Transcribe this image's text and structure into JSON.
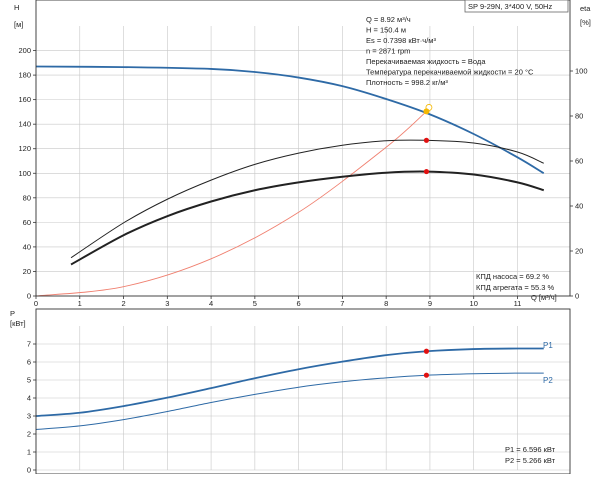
{
  "header": {
    "pump_title": "SP 9-29N, 3*400 V, 50Hz"
  },
  "top_panel": {
    "y_axis_label": "H",
    "y_axis_unit": "[м]",
    "right_axis_label": "eta",
    "right_axis_unit": "[%]",
    "x_axis_label": "Q [м³/ч]",
    "operating_point_info": [
      "Q = 8.92 м³/ч",
      "H = 150.4 м",
      "Es = 0.7398 кВт·ч/м³",
      "n = 2871 rpm",
      "Перекачиваемая жидкость = Вода",
      "Температура перекачиваемой жидкости = 20 °C",
      "Плотность = 998.2 кг/м³"
    ],
    "efficiency_info": [
      "КПД насоса = 69.2 %",
      "КПД агрегата = 55.3 %"
    ]
  },
  "bottom_panel": {
    "y_axis_label": "P",
    "y_axis_unit": "[кВт]",
    "series_labels": [
      "P1",
      "P2"
    ],
    "power_info": [
      "P1 = 6.596 кВт",
      "P2 = 5.266 кВт"
    ]
  },
  "colors": {
    "head_curve": "#2e6aa6",
    "system_curve": "#f08070",
    "efficiency_curves": "#222222",
    "duty_point": "#e01010",
    "head_duty_point": "#f5b800",
    "power_curves": "#2e6aa6"
  },
  "chart_data": [
    {
      "type": "line",
      "xlim": [
        0,
        12.2
      ],
      "ylim": [
        0,
        220
      ],
      "y2lim": [
        0,
        120
      ],
      "x_ticks": [
        0,
        1,
        2,
        3,
        4,
        5,
        6,
        7,
        8,
        9,
        10,
        11
      ],
      "y_ticks": [
        0,
        20,
        40,
        60,
        80,
        100,
        120,
        140,
        160,
        180,
        200
      ],
      "y2_ticks": [
        0,
        20,
        40,
        60,
        80,
        100
      ],
      "grid": true,
      "series": [
        {
          "axis": "left",
          "x": [
            0,
            2,
            4,
            5,
            6,
            7,
            8,
            9,
            10,
            11,
            11.6
          ],
          "y": [
            187,
            186.5,
            185,
            182.5,
            178,
            171,
            160.5,
            148,
            132,
            113,
            100
          ]
        },
        {
          "axis": "left",
          "x": [
            0,
            2,
            4,
            6,
            8,
            8.92
          ],
          "y": [
            0,
            7.6,
            30.3,
            68.2,
            121.2,
            150.4
          ]
        },
        {
          "axis": "right",
          "x": [
            0.8,
            2,
            3,
            4,
            5,
            6,
            7,
            8,
            8.92,
            10,
            11,
            11.6
          ],
          "y": [
            17,
            32.5,
            43,
            51.5,
            58.5,
            63.5,
            67,
            69,
            69.2,
            68,
            64,
            59
          ]
        },
        {
          "axis": "right",
          "x": [
            0.8,
            2,
            3,
            4,
            5,
            6,
            7,
            8,
            8.92,
            10,
            11,
            11.6
          ],
          "y": [
            14,
            27,
            35.5,
            42,
            47,
            50.5,
            53,
            54.8,
            55.3,
            54,
            50.5,
            47
          ]
        }
      ],
      "points": [
        {
          "x": 8.92,
          "y": 150.4,
          "axis": "left",
          "kind": "head_duty"
        },
        {
          "x": 8.92,
          "y": 69.2,
          "axis": "right",
          "kind": "duty"
        },
        {
          "x": 8.92,
          "y": 55.3,
          "axis": "right",
          "kind": "duty"
        }
      ]
    },
    {
      "type": "line",
      "xlim": [
        0,
        12.2
      ],
      "ylim": [
        0,
        8
      ],
      "y_ticks": [
        0,
        1,
        2,
        3,
        4,
        5,
        6,
        7
      ],
      "grid": true,
      "series": [
        {
          "name": "P1",
          "x": [
            0,
            1,
            2,
            3,
            4,
            5,
            6,
            7,
            8,
            8.92,
            10,
            11,
            11.6
          ],
          "y": [
            3.0,
            3.18,
            3.55,
            4.02,
            4.55,
            5.1,
            5.6,
            6.02,
            6.38,
            6.596,
            6.72,
            6.75,
            6.75
          ]
        },
        {
          "name": "P2",
          "x": [
            0,
            1,
            2,
            3,
            4,
            5,
            6,
            7,
            8,
            8.92,
            10,
            11,
            11.6
          ],
          "y": [
            2.25,
            2.45,
            2.8,
            3.25,
            3.75,
            4.2,
            4.6,
            4.9,
            5.12,
            5.266,
            5.35,
            5.38,
            5.38
          ]
        }
      ],
      "points": [
        {
          "x": 8.92,
          "y": 6.596,
          "kind": "duty"
        },
        {
          "x": 8.92,
          "y": 5.266,
          "kind": "duty"
        }
      ]
    }
  ]
}
